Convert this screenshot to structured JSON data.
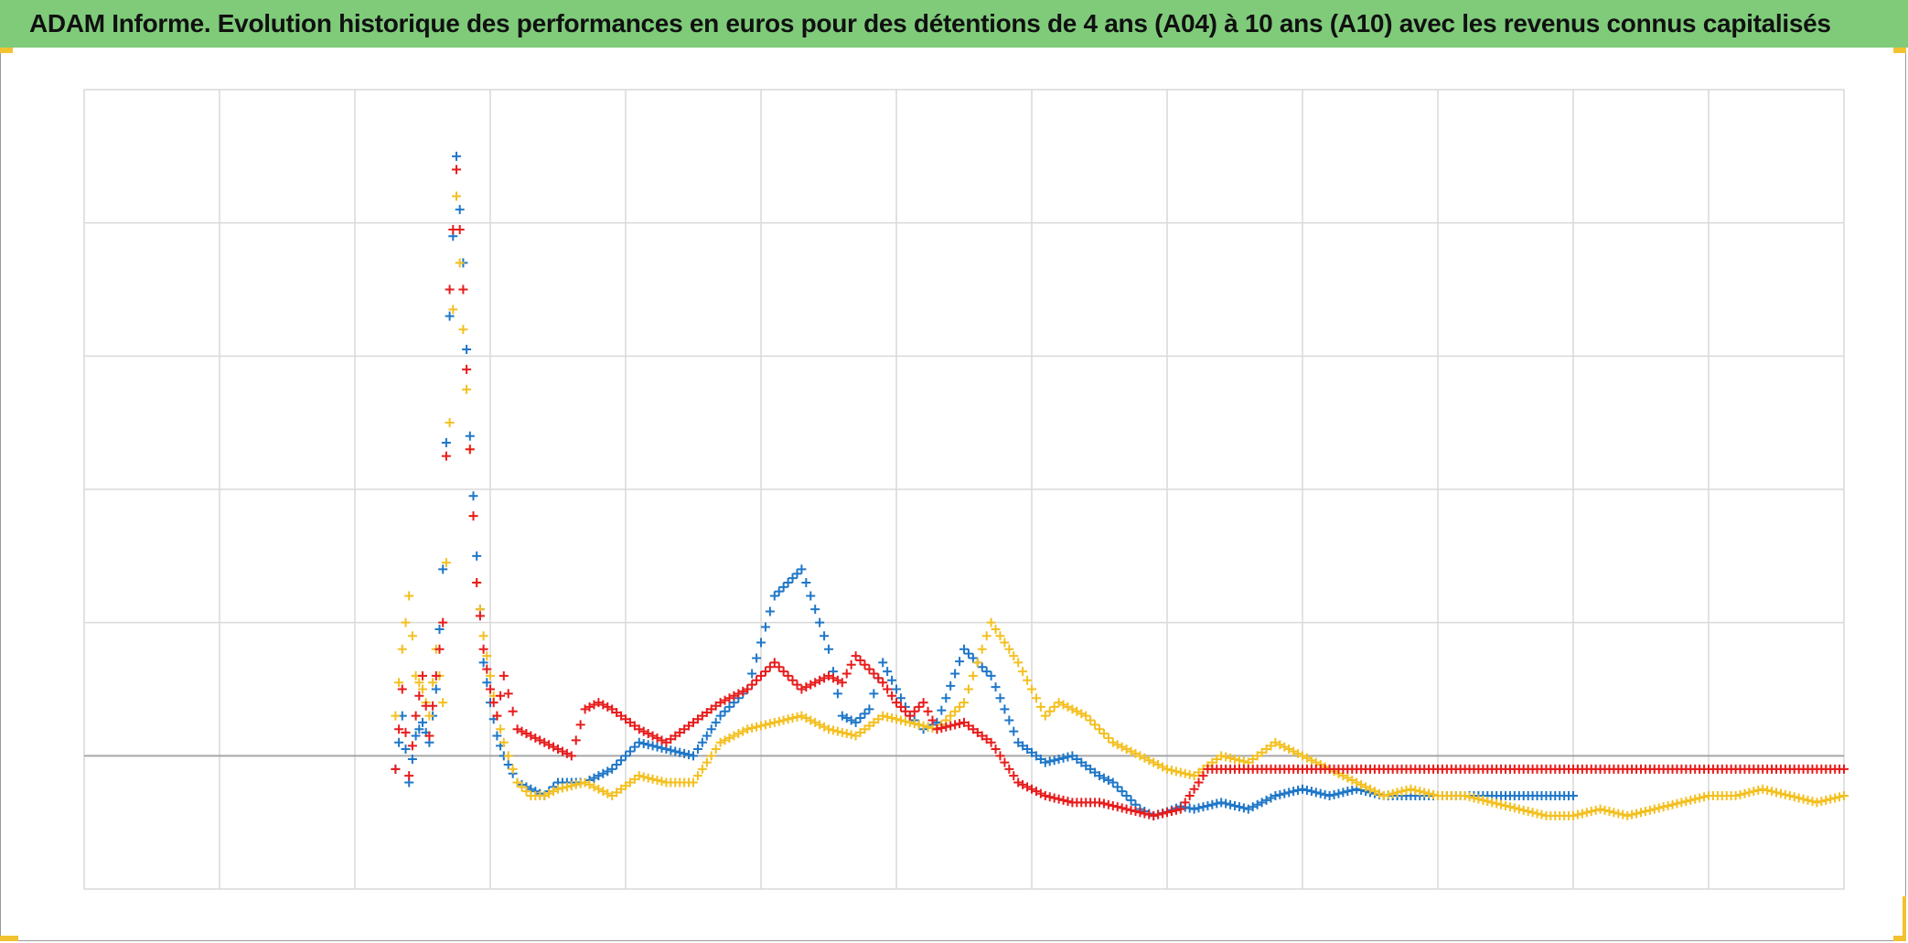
{
  "title": "ADAM Informe. Evolution historique des performances en euros pour des détentions de 4 ans (A04) à 10 ans (A10) avec les revenus connus capitalisés",
  "colors": {
    "title_bg": "#7fcb7a",
    "accent_corner": "#f2c230",
    "grid": "#d9d9d9",
    "baseline": "#a6a6a6"
  },
  "chart_data": {
    "type": "scatter",
    "title": "ADAM Informe. Evolution historique des performances en euros pour des détentions de 4 ans (A04) à 10 ans (A10) avec les revenus connus capitalisés",
    "xlabel": "",
    "ylabel": "",
    "xlim": [
      0,
      13
    ],
    "ylim": [
      -1,
      5
    ],
    "tick_labels_visible": false,
    "grid": true,
    "marker": "+",
    "legend": "none",
    "series": [
      {
        "color": "#1f77c8",
        "x": [
          2.3,
          2.35,
          2.4,
          2.45,
          2.5,
          2.55,
          2.6,
          2.65,
          2.7,
          2.75,
          2.8,
          2.85,
          2.9,
          2.95,
          3.0,
          3.05,
          3.1,
          3.2,
          3.3,
          3.4,
          3.5,
          3.7,
          3.9,
          4.1,
          4.3,
          4.5,
          4.7,
          4.9,
          5.1,
          5.3,
          5.5,
          5.6,
          5.7,
          5.8,
          5.9,
          6.0,
          6.1,
          6.2,
          6.3,
          6.5,
          6.7,
          6.9,
          7.1,
          7.3,
          7.5,
          7.6,
          7.7,
          7.8,
          7.9,
          8.0,
          8.1,
          8.2,
          8.4,
          8.6,
          8.8,
          9.0,
          9.2,
          9.4,
          9.6,
          9.8,
          10.0,
          10.2,
          10.4,
          10.6,
          10.8,
          11.0
        ],
        "y": [
          -0.1,
          0.3,
          -0.2,
          0.15,
          0.25,
          0.1,
          0.5,
          1.4,
          3.3,
          4.5,
          3.7,
          2.4,
          1.5,
          0.7,
          0.4,
          0.15,
          0.0,
          -0.2,
          -0.25,
          -0.3,
          -0.2,
          -0.2,
          -0.1,
          0.1,
          0.05,
          0.0,
          0.3,
          0.5,
          1.2,
          1.4,
          0.8,
          0.3,
          0.25,
          0.35,
          0.7,
          0.5,
          0.3,
          0.2,
          0.25,
          0.8,
          0.6,
          0.1,
          -0.05,
          0.0,
          -0.15,
          -0.2,
          -0.3,
          -0.4,
          -0.45,
          -0.42,
          -0.38,
          -0.4,
          -0.35,
          -0.4,
          -0.3,
          -0.25,
          -0.3,
          -0.25,
          -0.3,
          -0.3,
          -0.3,
          -0.3,
          -0.3,
          -0.3,
          -0.3,
          -0.3
        ]
      },
      {
        "color": "#f4c020",
        "x": [
          2.3,
          2.35,
          2.4,
          2.45,
          2.5,
          2.55,
          2.6,
          2.65,
          2.7,
          2.75,
          2.8,
          2.85,
          2.9,
          2.95,
          3.0,
          3.05,
          3.1,
          3.2,
          3.3,
          3.4,
          3.5,
          3.7,
          3.9,
          4.1,
          4.3,
          4.5,
          4.7,
          4.9,
          5.1,
          5.3,
          5.5,
          5.7,
          5.9,
          6.1,
          6.3,
          6.5,
          6.7,
          6.9,
          7.0,
          7.1,
          7.2,
          7.4,
          7.6,
          7.8,
          8.0,
          8.2,
          8.4,
          8.6,
          8.8,
          9.0,
          9.2,
          9.4,
          9.6,
          9.8,
          10.0,
          10.2,
          10.4,
          10.6,
          10.8,
          11.0,
          11.2,
          11.4,
          11.6,
          11.8,
          12.0,
          12.2,
          12.4,
          12.6,
          12.8,
          13.0
        ],
        "y": [
          0.3,
          0.8,
          1.2,
          0.6,
          0.5,
          0.3,
          0.8,
          0.4,
          2.5,
          4.2,
          3.2,
          2.3,
          1.3,
          0.9,
          0.6,
          0.3,
          0.1,
          -0.2,
          -0.3,
          -0.3,
          -0.25,
          -0.2,
          -0.3,
          -0.15,
          -0.2,
          -0.2,
          0.1,
          0.2,
          0.25,
          0.3,
          0.2,
          0.15,
          0.3,
          0.25,
          0.2,
          0.4,
          1.0,
          0.7,
          0.5,
          0.3,
          0.4,
          0.3,
          0.1,
          0.0,
          -0.1,
          -0.15,
          0.0,
          -0.05,
          0.1,
          0.0,
          -0.1,
          -0.2,
          -0.3,
          -0.25,
          -0.3,
          -0.3,
          -0.35,
          -0.4,
          -0.45,
          -0.45,
          -0.4,
          -0.45,
          -0.4,
          -0.35,
          -0.3,
          -0.3,
          -0.25,
          -0.3,
          -0.35,
          -0.3
        ]
      },
      {
        "color": "#e81c1c",
        "x": [
          2.3,
          2.35,
          2.4,
          2.45,
          2.5,
          2.55,
          2.6,
          2.65,
          2.7,
          2.75,
          2.8,
          2.85,
          2.9,
          2.95,
          3.0,
          3.05,
          3.1,
          3.2,
          3.3,
          3.4,
          3.5,
          3.6,
          3.7,
          3.8,
          3.9,
          4.1,
          4.3,
          4.5,
          4.7,
          4.9,
          5.1,
          5.3,
          5.5,
          5.6,
          5.7,
          5.8,
          5.9,
          6.0,
          6.1,
          6.2,
          6.3,
          6.5,
          6.7,
          6.9,
          7.1,
          7.3,
          7.5,
          7.7,
          7.9,
          8.1,
          8.3,
          8.5,
          8.6,
          8.7,
          8.8,
          9.0,
          9.2,
          9.4,
          9.6,
          9.8,
          10.0,
          10.2,
          10.4,
          10.6,
          10.8,
          11.0,
          11.2,
          11.4,
          11.6,
          11.8,
          12.0,
          12.2,
          12.4,
          12.6,
          12.8,
          13.0
        ],
        "y": [
          -0.1,
          0.5,
          -0.15,
          0.3,
          0.6,
          0.15,
          0.6,
          1.0,
          3.5,
          4.4,
          3.5,
          2.3,
          1.3,
          0.8,
          0.5,
          0.3,
          0.6,
          0.2,
          0.15,
          0.1,
          0.05,
          0.0,
          0.35,
          0.4,
          0.35,
          0.2,
          0.1,
          0.25,
          0.4,
          0.5,
          0.7,
          0.5,
          0.6,
          0.55,
          0.75,
          0.65,
          0.55,
          0.4,
          0.3,
          0.4,
          0.2,
          0.25,
          0.1,
          -0.2,
          -0.3,
          -0.35,
          -0.35,
          -0.4,
          -0.45,
          -0.4,
          -0.1,
          -0.1,
          -0.1,
          -0.1,
          -0.1,
          -0.1,
          -0.1,
          -0.1,
          -0.1,
          -0.1,
          -0.1,
          -0.1,
          -0.1,
          -0.1,
          -0.1,
          -0.1,
          -0.1,
          -0.1,
          -0.1,
          -0.1,
          -0.1,
          -0.1,
          -0.1,
          -0.1,
          -0.1,
          -0.1
        ]
      }
    ]
  }
}
